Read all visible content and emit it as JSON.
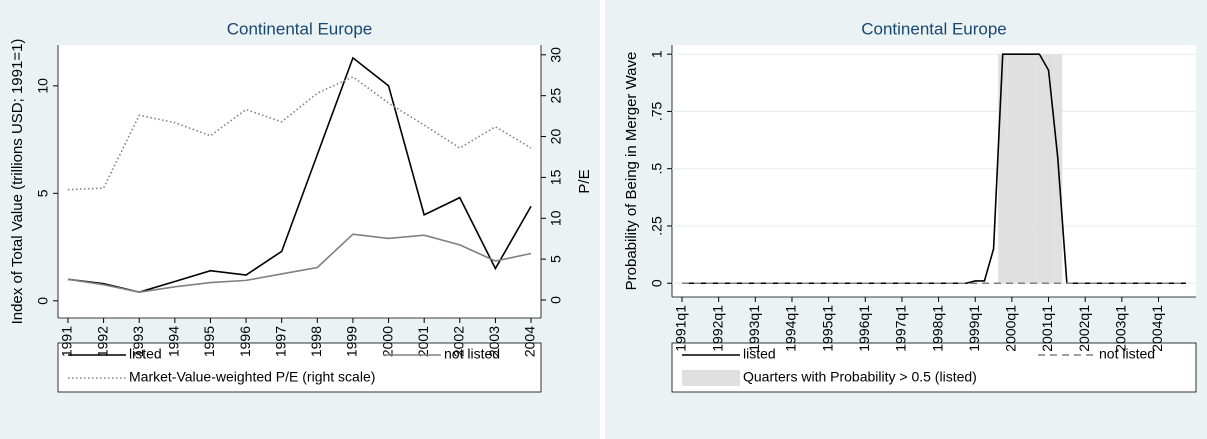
{
  "chart_data": [
    {
      "type": "line",
      "title": "Continental Europe",
      "ylabel": "Index of Total Value (trillions USD; 1991=1)",
      "y2label": "P/E",
      "x": [
        1991,
        1992,
        1993,
        1994,
        1995,
        1996,
        1997,
        1998,
        1999,
        2000,
        2001,
        2002,
        2003,
        2004
      ],
      "xlim": [
        1990.72,
        2004.28
      ],
      "xticks": [
        1991,
        1992,
        1993,
        1994,
        1995,
        1996,
        1997,
        1998,
        1999,
        2000,
        2001,
        2002,
        2003,
        2004
      ],
      "ylim": [
        -0.8,
        11.9
      ],
      "yticks": [
        0,
        5,
        10
      ],
      "y2lim": [
        -2.2,
        31.2
      ],
      "y2ticks": [
        0,
        5,
        10,
        15,
        20,
        25,
        30
      ],
      "grid": false,
      "series": [
        {
          "name": "listed",
          "color": "#000000",
          "dash": "solid",
          "values": [
            1.0,
            0.8,
            0.4,
            0.9,
            1.4,
            1.2,
            2.3,
            6.8,
            11.3,
            10.0,
            4.0,
            4.8,
            1.5,
            4.4
          ]
        },
        {
          "name": "not listed",
          "color": "#808080",
          "dash": "solid",
          "values": [
            1.0,
            0.75,
            0.4,
            0.65,
            0.85,
            0.95,
            1.25,
            1.55,
            3.1,
            2.9,
            3.05,
            2.6,
            1.85,
            2.2
          ]
        },
        {
          "name": "Market-Value-weighted P/E (right scale)",
          "color": "#808080",
          "dash": "dotted",
          "axis": "y2",
          "values": [
            13.5,
            13.7,
            22.6,
            21.7,
            20.1,
            23.3,
            21.8,
            25.3,
            27.3,
            24.1,
            21.4,
            18.6,
            21.2,
            18.6
          ]
        }
      ]
    },
    {
      "type": "line",
      "title": "Continental Europe",
      "ylabel": "Probability of Being in Merger Wave",
      "categories": [
        "1991q1",
        null,
        null,
        null,
        "1992q1",
        null,
        null,
        null,
        "1993q1",
        null,
        null,
        null,
        "1994q1",
        null,
        null,
        null,
        "1995q1",
        null,
        null,
        null,
        "1996q1",
        null,
        null,
        null,
        "1997q1",
        null,
        null,
        null,
        "1998q1",
        null,
        null,
        null,
        "1999q1",
        null,
        null,
        null,
        "2000q1",
        null,
        null,
        null,
        "2001q1",
        null,
        null,
        null,
        "2002q1",
        null,
        null,
        null,
        "2003q1",
        null,
        null,
        null,
        "2004q1",
        null,
        null,
        null
      ],
      "ylim": [
        -0.06,
        1.04
      ],
      "yticks": [
        0,
        {
          "value": 0.25,
          "label": ".25"
        },
        {
          "value": 0.5,
          "label": ".5"
        },
        {
          "value": 0.75,
          "label": ".75"
        },
        1
      ],
      "grid": true,
      "series": [
        {
          "name": "listed",
          "color": "#000000",
          "dash": "solid",
          "values": [
            0,
            0,
            0,
            0,
            0,
            0,
            0,
            0,
            0,
            0,
            0,
            0,
            0,
            0,
            0,
            0,
            0,
            0,
            0,
            0,
            0,
            0,
            0,
            0,
            0,
            0,
            0,
            0,
            0,
            0,
            0,
            0,
            0.01,
            0.01,
            0.15,
            1,
            1,
            1,
            1,
            1,
            0.93,
            0.55,
            0,
            0,
            0,
            0,
            0,
            0,
            0,
            0,
            0,
            0,
            0,
            0,
            0,
            0
          ]
        },
        {
          "name": "not listed",
          "color": "#808080",
          "dash": "dashed",
          "values": [
            0,
            0,
            0,
            0,
            0,
            0,
            0,
            0,
            0,
            0,
            0,
            0,
            0,
            0,
            0,
            0,
            0,
            0,
            0,
            0,
            0,
            0,
            0,
            0,
            0,
            0,
            0,
            0,
            0,
            0,
            0,
            0,
            0,
            0,
            0,
            0,
            0,
            0,
            0,
            0,
            0,
            0,
            0,
            0,
            0,
            0,
            0,
            0,
            0,
            0,
            0,
            0,
            0,
            0,
            0,
            0
          ]
        },
        {
          "name": "Quarters with Probability > 0.5 (listed)",
          "color": "#e0e0e0",
          "type": "bar",
          "values": [
            0,
            0,
            0,
            0,
            0,
            0,
            0,
            0,
            0,
            0,
            0,
            0,
            0,
            0,
            0,
            0,
            0,
            0,
            0,
            0,
            0,
            0,
            0,
            0,
            0,
            0,
            0,
            0,
            0,
            0,
            0,
            0,
            0,
            0,
            0,
            1,
            1,
            1,
            1,
            1,
            1,
            1,
            0,
            0,
            0,
            0,
            0,
            0,
            0,
            0,
            0,
            0,
            0,
            0,
            0,
            0
          ]
        }
      ]
    }
  ]
}
